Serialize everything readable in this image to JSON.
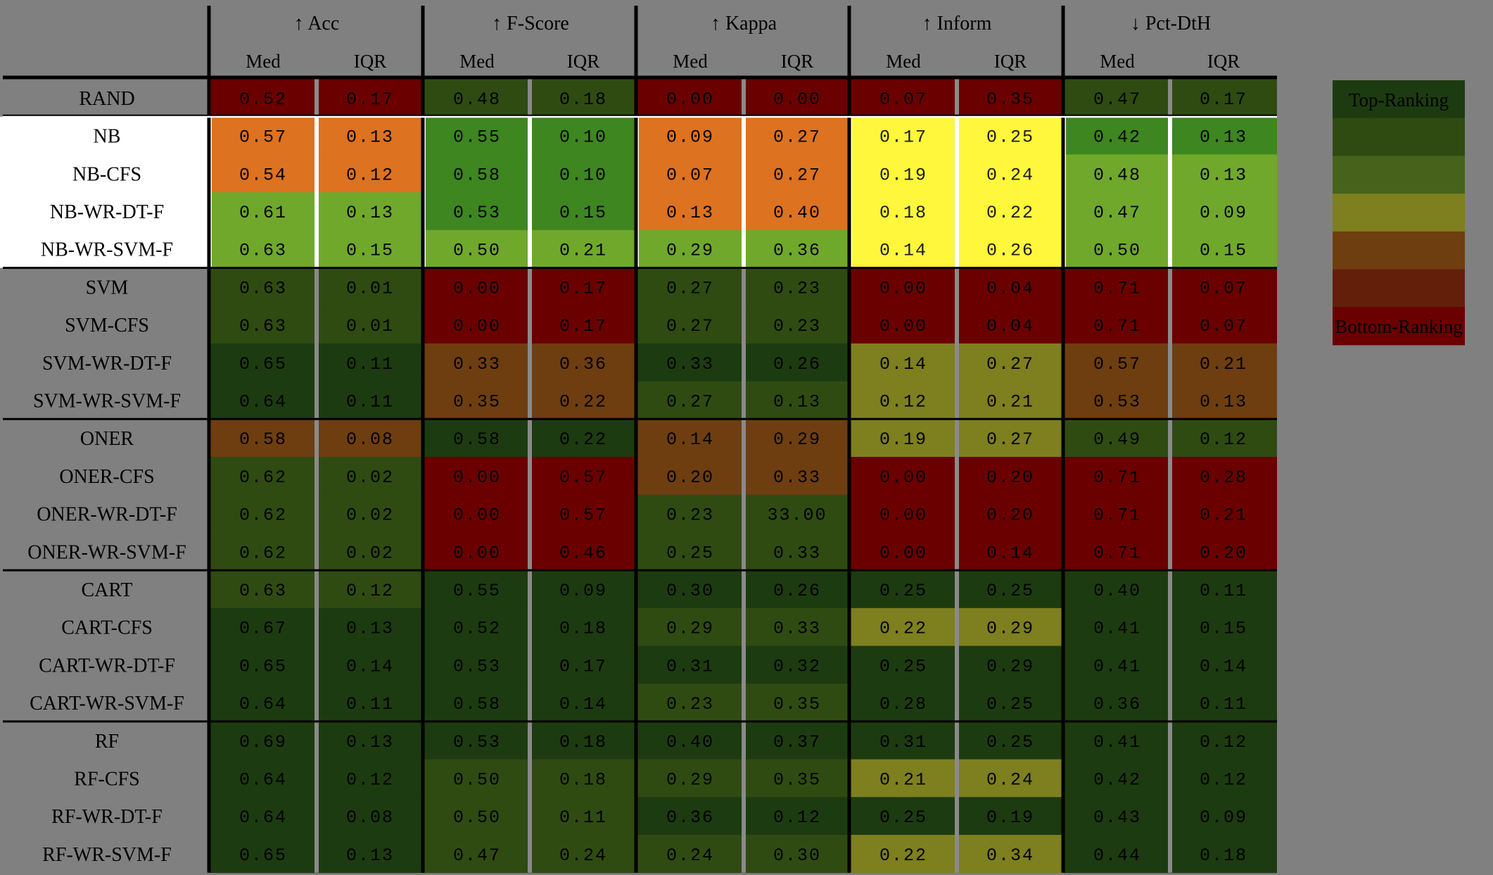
{
  "chart_data": {
    "type": "heatmap",
    "title": "",
    "metrics": [
      {
        "arrow": "↑",
        "name": "Acc"
      },
      {
        "arrow": "↑",
        "name": "F-Score"
      },
      {
        "arrow": "↑",
        "name": "Kappa"
      },
      {
        "arrow": "↑",
        "name": "Inform"
      },
      {
        "arrow": "↓",
        "name": "Pct-DtH"
      }
    ],
    "subcolumns": [
      "Med",
      "IQR"
    ],
    "groups": [
      {
        "rows": [
          {
            "label": "RAND",
            "values": [
              "0.52",
              "0.17",
              "0.48",
              "0.18",
              "0.00",
              "0.00",
              "0.07",
              "0.35",
              "0.47",
              "0.17"
            ],
            "levels": [
              6,
              6,
              1,
              1,
              6,
              6,
              6,
              6,
              1,
              1
            ]
          }
        ]
      },
      {
        "highlight": true,
        "rows": [
          {
            "label": "NB",
            "values": [
              "0.57",
              "0.13",
              "0.55",
              "0.10",
              "0.09",
              "0.27",
              "0.17",
              "0.25",
              "0.42",
              "0.13"
            ],
            "levels": [
              8,
              8,
              7,
              7,
              8,
              8,
              9,
              9,
              7,
              7
            ]
          },
          {
            "label": "NB-CFS",
            "values": [
              "0.54",
              "0.12",
              "0.58",
              "0.10",
              "0.07",
              "0.27",
              "0.19",
              "0.24",
              "0.48",
              "0.13"
            ],
            "levels": [
              8,
              8,
              7,
              7,
              8,
              8,
              9,
              9,
              10,
              10
            ]
          },
          {
            "label": "NB-WR-DT-F",
            "values": [
              "0.61",
              "0.13",
              "0.53",
              "0.15",
              "0.13",
              "0.40",
              "0.18",
              "0.22",
              "0.47",
              "0.09"
            ],
            "levels": [
              10,
              10,
              7,
              7,
              8,
              8,
              9,
              9,
              10,
              10
            ]
          },
          {
            "label": "NB-WR-SVM-F",
            "values": [
              "0.63",
              "0.15",
              "0.50",
              "0.21",
              "0.29",
              "0.36",
              "0.14",
              "0.26",
              "0.50",
              "0.15"
            ],
            "levels": [
              10,
              10,
              10,
              10,
              10,
              10,
              9,
              9,
              10,
              10
            ]
          }
        ]
      },
      {
        "rows": [
          {
            "label": "SVM",
            "values": [
              "0.63",
              "0.01",
              "0.00",
              "0.17",
              "0.27",
              "0.23",
              "0.00",
              "0.04",
              "0.71",
              "0.07"
            ],
            "levels": [
              1,
              1,
              6,
              6,
              1,
              1,
              6,
              6,
              6,
              6
            ]
          },
          {
            "label": "SVM-CFS",
            "values": [
              "0.63",
              "0.01",
              "0.00",
              "0.17",
              "0.27",
              "0.23",
              "0.00",
              "0.04",
              "0.71",
              "0.07"
            ],
            "levels": [
              1,
              1,
              6,
              6,
              1,
              1,
              6,
              6,
              6,
              6
            ]
          },
          {
            "label": "SVM-WR-DT-F",
            "values": [
              "0.65",
              "0.11",
              "0.33",
              "0.36",
              "0.33",
              "0.26",
              "0.14",
              "0.27",
              "0.57",
              "0.21"
            ],
            "levels": [
              0,
              0,
              4,
              4,
              0,
              0,
              3,
              3,
              4,
              4
            ]
          },
          {
            "label": "SVM-WR-SVM-F",
            "values": [
              "0.64",
              "0.11",
              "0.35",
              "0.22",
              "0.27",
              "0.13",
              "0.12",
              "0.21",
              "0.53",
              "0.13"
            ],
            "levels": [
              0,
              0,
              4,
              4,
              1,
              1,
              3,
              3,
              4,
              4
            ]
          }
        ]
      },
      {
        "rows": [
          {
            "label": "ONER",
            "values": [
              "0.58",
              "0.08",
              "0.58",
              "0.22",
              "0.14",
              "0.29",
              "0.19",
              "0.27",
              "0.49",
              "0.12"
            ],
            "levels": [
              4,
              4,
              0,
              0,
              4,
              4,
              3,
              3,
              1,
              1
            ]
          },
          {
            "label": "ONER-CFS",
            "values": [
              "0.62",
              "0.02",
              "0.00",
              "0.57",
              "0.20",
              "0.33",
              "0.00",
              "0.20",
              "0.71",
              "0.28"
            ],
            "levels": [
              1,
              1,
              6,
              6,
              4,
              4,
              6,
              6,
              6,
              6
            ]
          },
          {
            "label": "ONER-WR-DT-F",
            "values": [
              "0.62",
              "0.02",
              "0.00",
              "0.57",
              "0.23",
              "33.00",
              "0.00",
              "0.20",
              "0.71",
              "0.21"
            ],
            "levels": [
              1,
              1,
              6,
              6,
              1,
              1,
              6,
              6,
              6,
              6
            ]
          },
          {
            "label": "ONER-WR-SVM-F",
            "values": [
              "0.62",
              "0.02",
              "0.00",
              "0.46",
              "0.25",
              "0.33",
              "0.00",
              "0.14",
              "0.71",
              "0.20"
            ],
            "levels": [
              1,
              1,
              6,
              6,
              1,
              1,
              6,
              6,
              6,
              6
            ]
          }
        ]
      },
      {
        "rows": [
          {
            "label": "CART",
            "values": [
              "0.63",
              "0.12",
              "0.55",
              "0.09",
              "0.30",
              "0.26",
              "0.25",
              "0.25",
              "0.40",
              "0.11"
            ],
            "levels": [
              1,
              1,
              0,
              0,
              0,
              0,
              0,
              0,
              0,
              0
            ]
          },
          {
            "label": "CART-CFS",
            "values": [
              "0.67",
              "0.13",
              "0.52",
              "0.18",
              "0.29",
              "0.33",
              "0.22",
              "0.29",
              "0.41",
              "0.15"
            ],
            "levels": [
              0,
              0,
              0,
              0,
              1,
              1,
              3,
              3,
              0,
              0
            ]
          },
          {
            "label": "CART-WR-DT-F",
            "values": [
              "0.65",
              "0.14",
              "0.53",
              "0.17",
              "0.31",
              "0.32",
              "0.25",
              "0.29",
              "0.41",
              "0.14"
            ],
            "levels": [
              0,
              0,
              0,
              0,
              0,
              0,
              0,
              0,
              0,
              0
            ]
          },
          {
            "label": "CART-WR-SVM-F",
            "values": [
              "0.64",
              "0.11",
              "0.58",
              "0.14",
              "0.23",
              "0.35",
              "0.28",
              "0.25",
              "0.36",
              "0.11"
            ],
            "levels": [
              0,
              0,
              0,
              0,
              1,
              1,
              0,
              0,
              0,
              0
            ]
          }
        ]
      },
      {
        "rows": [
          {
            "label": "RF",
            "values": [
              "0.69",
              "0.13",
              "0.53",
              "0.18",
              "0.40",
              "0.37",
              "0.31",
              "0.25",
              "0.41",
              "0.12"
            ],
            "levels": [
              0,
              0,
              0,
              0,
              0,
              0,
              0,
              0,
              0,
              0
            ]
          },
          {
            "label": "RF-CFS",
            "values": [
              "0.64",
              "0.12",
              "0.50",
              "0.18",
              "0.29",
              "0.35",
              "0.21",
              "0.24",
              "0.42",
              "0.12"
            ],
            "levels": [
              0,
              0,
              1,
              1,
              1,
              1,
              3,
              3,
              0,
              0
            ]
          },
          {
            "label": "RF-WR-DT-F",
            "values": [
              "0.64",
              "0.08",
              "0.50",
              "0.11",
              "0.36",
              "0.12",
              "0.25",
              "0.19",
              "0.43",
              "0.09"
            ],
            "levels": [
              0,
              0,
              1,
              1,
              0,
              0,
              0,
              0,
              0,
              0
            ]
          },
          {
            "label": "RF-WR-SVM-F",
            "values": [
              "0.65",
              "0.13",
              "0.47",
              "0.24",
              "0.24",
              "0.30",
              "0.22",
              "0.34",
              "0.44",
              "0.18"
            ],
            "levels": [
              0,
              0,
              1,
              1,
              1,
              1,
              3,
              3,
              0,
              0
            ]
          }
        ]
      }
    ],
    "palette": [
      "#1d3b10",
      "#2f4b12",
      "#47621b",
      "#7e7f1e",
      "#6e3e10",
      "#641f0b",
      "#6a0000",
      "#3d8620",
      "#dd7220",
      "#fff73c",
      "#70a82c"
    ],
    "legend": {
      "top_label": "Top-Ranking",
      "bottom_label": "Bottom-Ranking",
      "levels": [
        0,
        1,
        2,
        3,
        4,
        5,
        6
      ]
    }
  }
}
